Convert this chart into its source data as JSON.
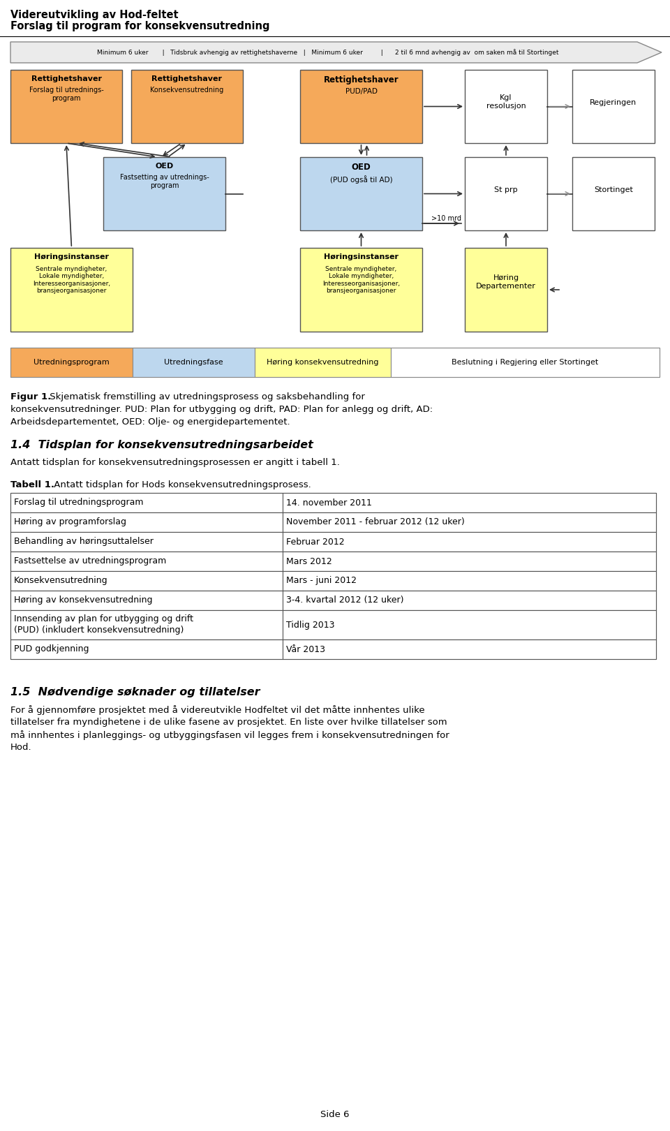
{
  "page_title_line1": "Videreutvikling av Hod-feltet",
  "page_title_line2": "Forslag til program for konsekvensutredning",
  "arrow_text": "Minimum 6 uker       |   Tidsbruk avhengig av rettighetshaverne   |   Minimum 6 uker         |      2 til 6 mnd avhengig av  om saken må til Stortinget",
  "orange_color": "#F5A95A",
  "blue_color": "#BDD7EE",
  "yellow_color": "#FFFF99",
  "white_color": "#FFFFFF",
  "fig1_bold": "Figur 1.",
  "fig1_rest": " Skjematisk fremstilling av utredningsprosess og saksbehandling for",
  "fig1_line2": "konsekvensutredninger. PUD: Plan for utbygging og drift, PAD: Plan for anlegg og drift, AD:",
  "fig1_line3": "Arbeidsdepartementet, OED: Olje- og energidepartementet.",
  "section_title": "1.4  Tidsplan for konsekvensutredningsarbeidet",
  "section_body": "Antatt tidsplan for konsekvensutredningsprosessen er angitt i tabell 1.",
  "table_label_bold": "Tabell 1.",
  "table_label_rest": " Antatt tidsplan for Hods konsekvensutredningsprosess.",
  "table_rows": [
    [
      "Forslag til utredningsprogram",
      "14. november 2011"
    ],
    [
      "Høring av programforslag",
      "November 2011 - februar 2012 (12 uker)"
    ],
    [
      "Behandling av høringsuttalelser",
      "Februar 2012"
    ],
    [
      "Fastsettelse av utredningsprogram",
      "Mars 2012"
    ],
    [
      "Konsekvensutredning",
      "Mars - juni 2012"
    ],
    [
      "Høring av konsekvensutredning",
      "3-4. kvartal 2012 (12 uker)"
    ],
    [
      "Innsending av plan for utbygging og drift\n(PUD) (inkludert konsekvensutredning)",
      "Tidlig 2013"
    ],
    [
      "PUD godkjenning",
      "Vår 2013"
    ]
  ],
  "sec2_title": "1.5  Nødvendige søknader og tillatelser",
  "sec2_lines": [
    "For å gjennomføre prosjektet med å videreutvikle Hodfeltet vil det måtte innhentes ulike",
    "tillatelser fra myndighetene i de ulike fasene av prosjektet. En liste over hvilke tillatelser som",
    "må innhentes i planleggings- og utbyggingsfasen vil legges frem i konsekvensutredningen for",
    "Hod."
  ],
  "footer": "Side 6"
}
